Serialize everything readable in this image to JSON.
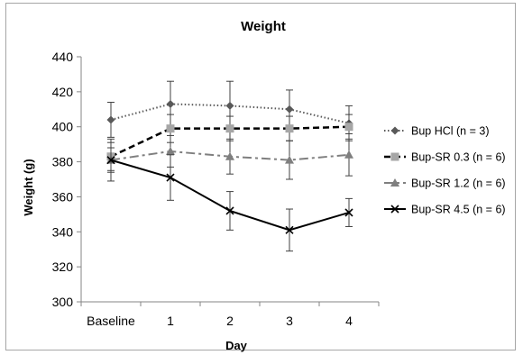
{
  "chart_data": {
    "type": "line",
    "title": "Weight",
    "xlabel": "Day",
    "ylabel": "Weight (g)",
    "categories": [
      "Baseline",
      "1",
      "2",
      "3",
      "4"
    ],
    "ylim": [
      300,
      440
    ],
    "yticks": [
      300,
      320,
      340,
      360,
      380,
      400,
      420,
      440
    ],
    "grid": false,
    "legend_position": "right",
    "series": [
      {
        "name": "Bup HCl (n = 3)",
        "values": [
          404,
          413,
          412,
          410,
          402
        ],
        "error": [
          10,
          13,
          14,
          11,
          10
        ],
        "color": "#595959",
        "dash": "dotted",
        "marker": "diamond"
      },
      {
        "name": "Bup-SR 0.3 (n = 6)",
        "values": [
          383,
          399,
          399,
          399,
          400
        ],
        "error": [
          8,
          8,
          7,
          7,
          7
        ],
        "color": "#000000",
        "dash": "dashed",
        "marker": "square"
      },
      {
        "name": "Bup-SR 1.2 (n = 6)",
        "values": [
          381,
          386,
          383,
          381,
          384
        ],
        "error": [
          7,
          9,
          10,
          11,
          12
        ],
        "color": "#7f7f7f",
        "dash": "dashdot",
        "marker": "triangle"
      },
      {
        "name": "Bup-SR 4.5 (n = 6)",
        "values": [
          381,
          371,
          352,
          341,
          351
        ],
        "error": [
          12,
          13,
          11,
          12,
          8
        ],
        "color": "#000000",
        "dash": "solid",
        "marker": "x"
      }
    ]
  }
}
